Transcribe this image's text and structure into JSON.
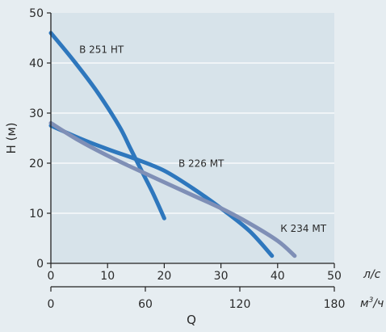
{
  "chart_data": {
    "type": "line",
    "xlabel": "Q",
    "ylabel": "H (м)",
    "x_unit_top": "л/с",
    "x_unit_bottom": "м³/ч",
    "x_unit_bottom_base": "м",
    "x_unit_bottom_sup": "3",
    "x_unit_bottom_tail": "/ч",
    "xlim": [
      0,
      50
    ],
    "ylim": [
      0,
      50
    ],
    "x_ticks": [
      "0",
      "10",
      "20",
      "30",
      "40",
      "50"
    ],
    "y_ticks": [
      "0",
      "10",
      "20",
      "30",
      "40",
      "50"
    ],
    "x2_ticks": [
      "0",
      "60",
      "120",
      "180"
    ],
    "x2_ratio": 3.6,
    "grid": "horizontal",
    "series": [
      {
        "name": "В 251 НТ",
        "color": "#2e77bd",
        "points": [
          [
            0,
            46
          ],
          [
            4,
            40.5
          ],
          [
            8,
            34.5
          ],
          [
            12,
            27.5
          ],
          [
            14,
            23
          ],
          [
            16,
            18.5
          ],
          [
            18,
            14
          ],
          [
            20,
            9
          ]
        ]
      },
      {
        "name": "В 226 МТ",
        "color": "#2e77bd",
        "points": [
          [
            0,
            27.5
          ],
          [
            5,
            25
          ],
          [
            10,
            22.8
          ],
          [
            15,
            20.8
          ],
          [
            20,
            18.5
          ],
          [
            25,
            15
          ],
          [
            30,
            11
          ],
          [
            35,
            6.5
          ],
          [
            39,
            1.5
          ]
        ]
      },
      {
        "name": "К 234 МТ",
        "color": "#7f8fb6",
        "points": [
          [
            0,
            28
          ],
          [
            5,
            24.5
          ],
          [
            10,
            21.5
          ],
          [
            15,
            18.8
          ],
          [
            20,
            16.2
          ],
          [
            25,
            13.6
          ],
          [
            30,
            11
          ],
          [
            35,
            8
          ],
          [
            40,
            4.5
          ],
          [
            43,
            1.5
          ]
        ]
      }
    ]
  }
}
